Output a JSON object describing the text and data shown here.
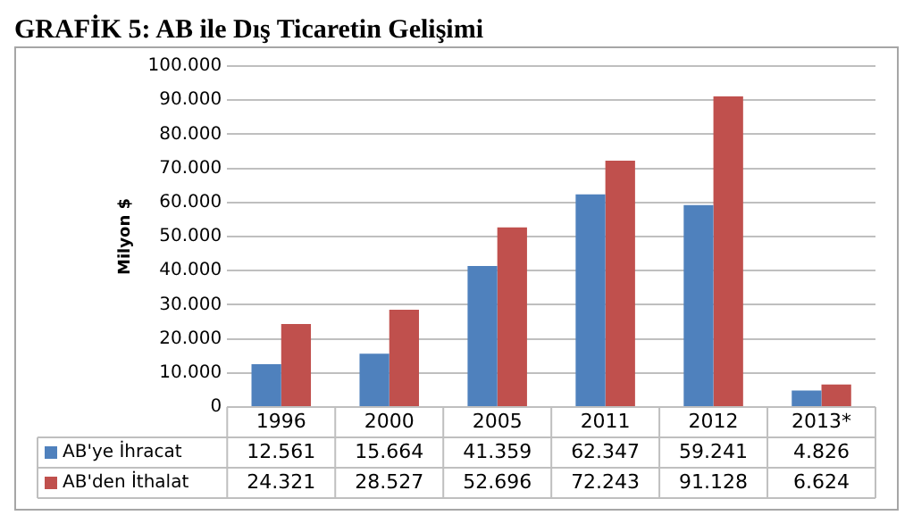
{
  "chart_data": {
    "type": "bar",
    "title": "GRAFİK 5: AB ile Dış Ticaretin Gelişimi",
    "ylabel": "Milyon $",
    "categories": [
      "1996",
      "2000",
      "2005",
      "2011",
      "2012",
      "2013*"
    ],
    "series": [
      {
        "name": "AB'ye İhracat",
        "color": "#4f81bd",
        "values": [
          12561,
          15664,
          41359,
          62347,
          59241,
          4826
        ],
        "value_labels": [
          "12.561",
          "15.664",
          "41.359",
          "62.347",
          "59.241",
          "4.826"
        ]
      },
      {
        "name": "AB'den İthalat",
        "color": "#c0504d",
        "values": [
          24321,
          28527,
          52696,
          72243,
          91128,
          6624
        ],
        "value_labels": [
          "24.321",
          "28.527",
          "52.696",
          "72.243",
          "91.128",
          "6.624"
        ]
      }
    ],
    "ylim": [
      0,
      100000
    ],
    "yticks": [
      {
        "value": 0,
        "label": "0"
      },
      {
        "value": 10000,
        "label": "10.000"
      },
      {
        "value": 20000,
        "label": "20.000"
      },
      {
        "value": 30000,
        "label": "30.000"
      },
      {
        "value": 40000,
        "label": "40.000"
      },
      {
        "value": 50000,
        "label": "50.000"
      },
      {
        "value": 60000,
        "label": "60.000"
      },
      {
        "value": 70000,
        "label": "70.000"
      },
      {
        "value": 80000,
        "label": "80.000"
      },
      {
        "value": 90000,
        "label": "90.000"
      },
      {
        "value": 100000,
        "label": "100.000"
      }
    ],
    "grid": "y",
    "legend": "bottom"
  }
}
